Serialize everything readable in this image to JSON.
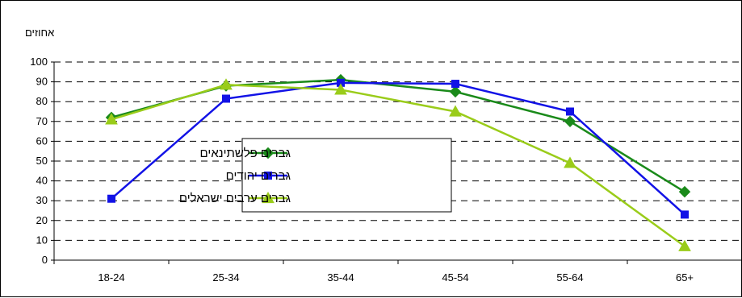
{
  "chart_data": {
    "type": "line",
    "title": "",
    "xlabel": "",
    "ylabel": "אחוזים",
    "categories": [
      "18-24",
      "25-34",
      "35-44",
      "45-54",
      "55-64",
      "65+"
    ],
    "ylim": [
      0,
      100
    ],
    "yticks": [
      0,
      10,
      20,
      30,
      40,
      50,
      60,
      70,
      80,
      90,
      100
    ],
    "grid": "horizontal-dashed",
    "legend_position": "center",
    "series": [
      {
        "name": "גברים פלשתינאים",
        "values": [
          72,
          88,
          91,
          85,
          70,
          34.5
        ],
        "color": "#1a8a1a",
        "marker": "diamond"
      },
      {
        "name": "גברים יהודים",
        "values": [
          31,
          81.5,
          89.5,
          89,
          75,
          23
        ],
        "color": "#1212e6",
        "marker": "square"
      },
      {
        "name": "גברים ערבים ישראלים",
        "values": [
          71,
          88.5,
          86,
          75,
          49,
          7
        ],
        "color": "#9acc1a",
        "marker": "triangle"
      }
    ]
  }
}
